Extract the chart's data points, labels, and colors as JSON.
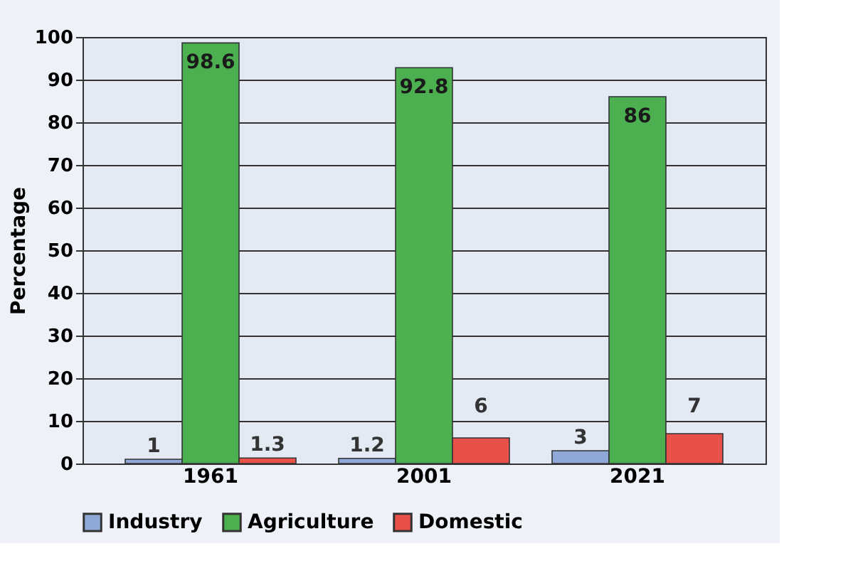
{
  "chart_data": {
    "type": "bar",
    "ylabel": "Percentage",
    "categories": [
      "1961",
      "2001",
      "2021"
    ],
    "series": [
      {
        "name": "Industry",
        "color": "#8fa8d8",
        "values": [
          1,
          1.2,
          3
        ]
      },
      {
        "name": "Agriculture",
        "color": "#4caf50",
        "values": [
          98.6,
          92.8,
          86
        ]
      },
      {
        "name": "Domestic",
        "color": "#e8504a",
        "values": [
          1.3,
          6,
          7
        ]
      }
    ],
    "ylim": [
      0,
      100
    ],
    "yticks": [
      0,
      10,
      20,
      30,
      40,
      50,
      60,
      70,
      80,
      90,
      100
    ],
    "grid": "y",
    "legend": "bottom",
    "data_labels": true
  }
}
